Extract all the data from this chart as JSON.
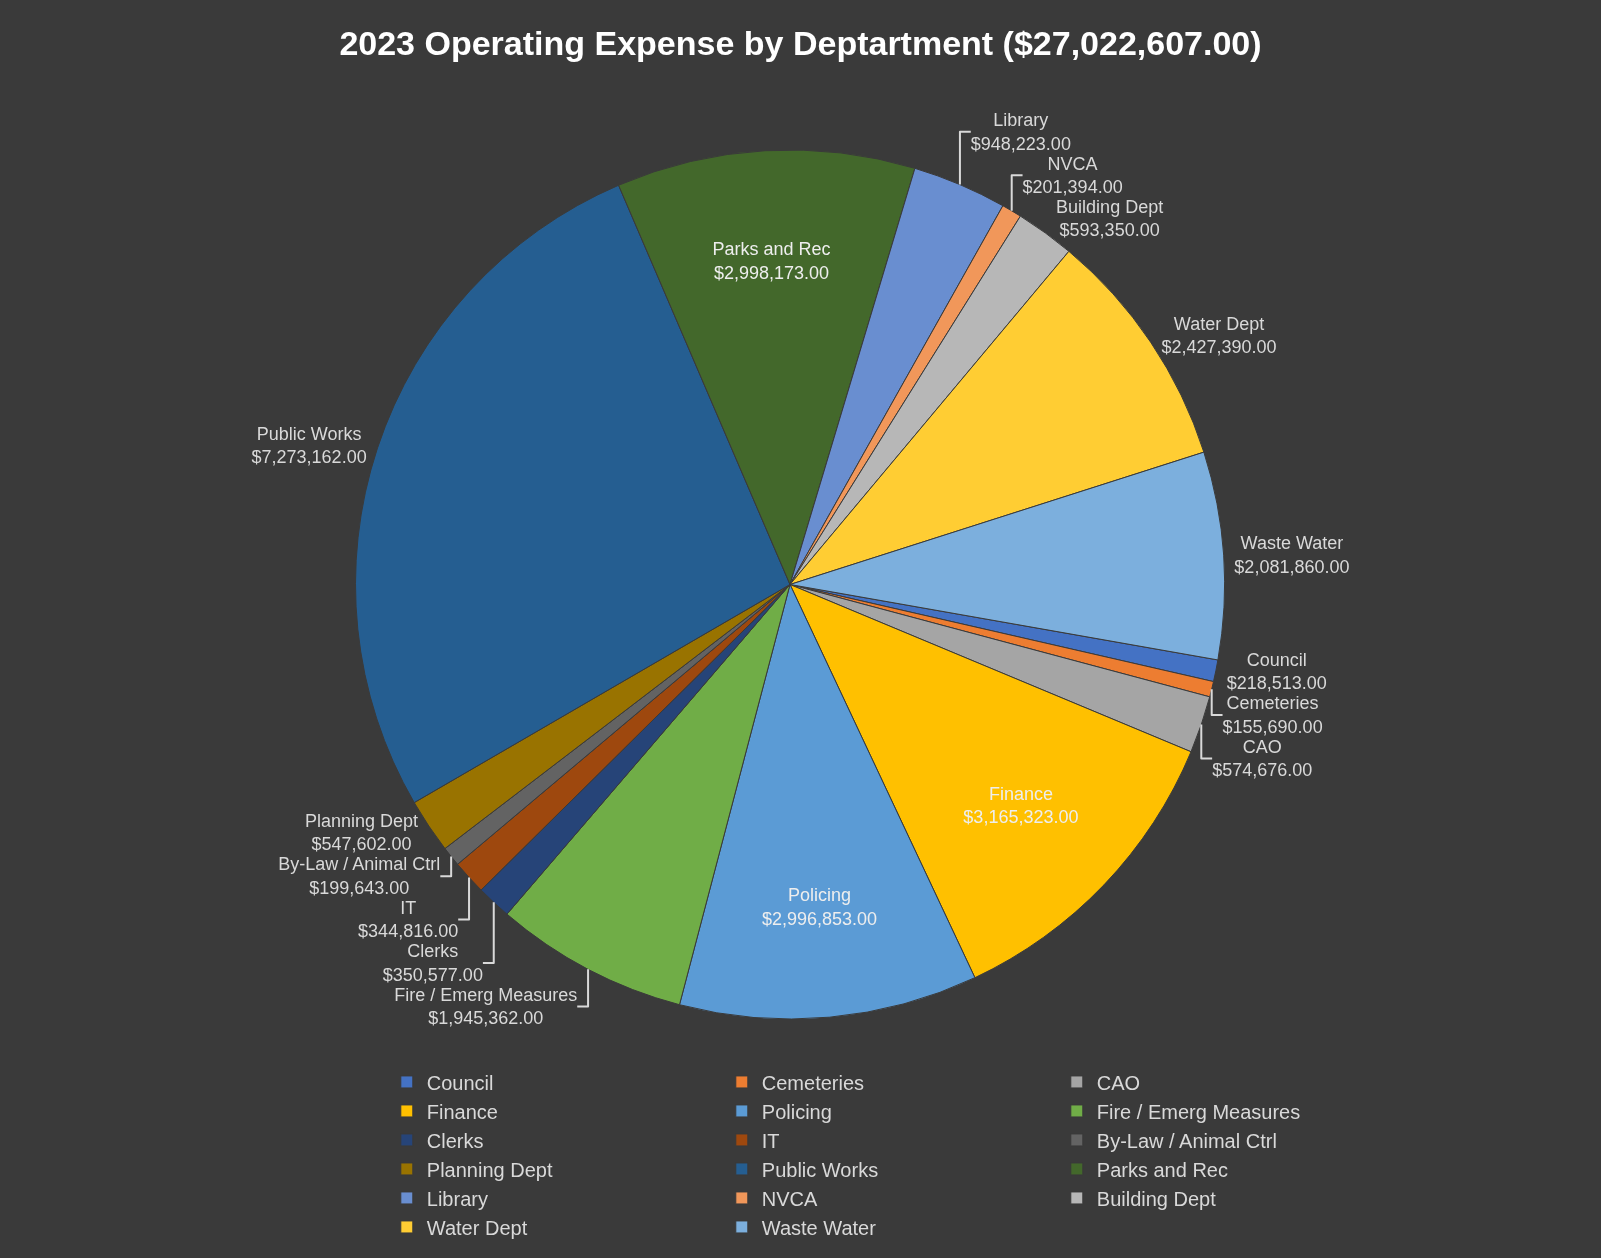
{
  "chart_data": {
    "type": "pie",
    "title": "2023 Operating Expense by Deptartment ($27,022,607.00)",
    "categories": [
      "Council",
      "Cemeteries",
      "CAO",
      "Finance",
      "Policing",
      "Fire / Emerg Measures",
      "Clerks",
      "IT",
      "By-Law / Animal Ctrl",
      "Planning Dept",
      "Public Works",
      "Parks and Rec",
      "Library",
      "NVCA",
      "Building Dept",
      "Water Dept",
      "Waste Water"
    ],
    "values": [
      218513,
      155690,
      574676,
      3165323,
      2996853,
      1945362,
      350577,
      344816,
      199643,
      547602,
      7273162,
      2998173,
      948223,
      201394,
      593350,
      2427390,
      2081860
    ],
    "value_labels": [
      "$218,513.00",
      "$155,690.00",
      "$574,676.00",
      "$3,165,323.00",
      "$2,996,853.00",
      "$1,945,362.00",
      "$350,577.00",
      "$344,816.00",
      "$199,643.00",
      "$547,602.00",
      "$7,273,162.00",
      "$2,998,173.00",
      "$948,223.00",
      "$201,394.00",
      "$593,350.00",
      "$2,427,390.00",
      "$2,081,860.00"
    ],
    "colors": [
      "#4472c4",
      "#ed7d31",
      "#a5a5a5",
      "#ffc000",
      "#5b9bd5",
      "#70ad47",
      "#264478",
      "#9e480e",
      "#636363",
      "#997300",
      "#255e91",
      "#43682b",
      "#698ed0",
      "#f1975a",
      "#b7b7b7",
      "#ffcd33",
      "#7cafdd"
    ],
    "legend": "bottom"
  }
}
